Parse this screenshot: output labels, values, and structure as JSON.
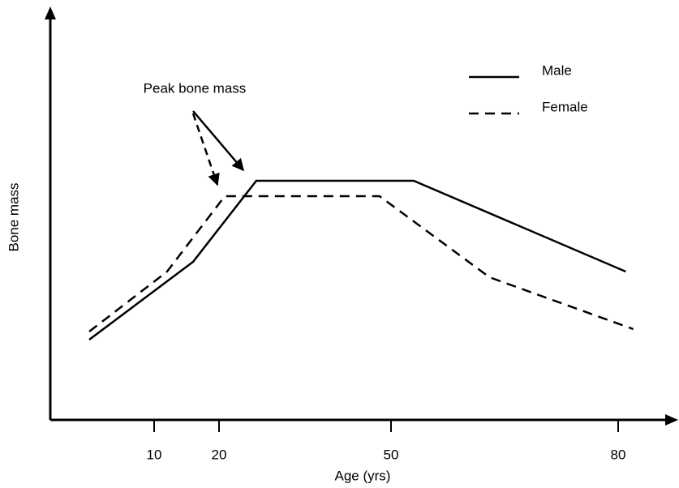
{
  "chart_data": {
    "type": "line",
    "x_label": "Age (yrs)",
    "y_label": "Bone mass",
    "annotation": "Peak bone mass",
    "xticks": [
      10,
      20,
      50,
      80
    ],
    "ylim": [
      0,
      100
    ],
    "series": [
      {
        "name": "Male",
        "color": "#000000",
        "style": "solid",
        "x": [
          0,
          16,
          26.5,
          53,
          81
        ],
        "values": [
          19.8,
          39,
          59,
          59,
          36.6
        ]
      },
      {
        "name": "Female",
        "color": "#000000",
        "style": "dashed",
        "x": [
          0,
          12,
          21,
          48,
          63,
          82
        ],
        "values": [
          21.8,
          36.6,
          55.2,
          55.2,
          35.2,
          22.4
        ]
      }
    ]
  }
}
